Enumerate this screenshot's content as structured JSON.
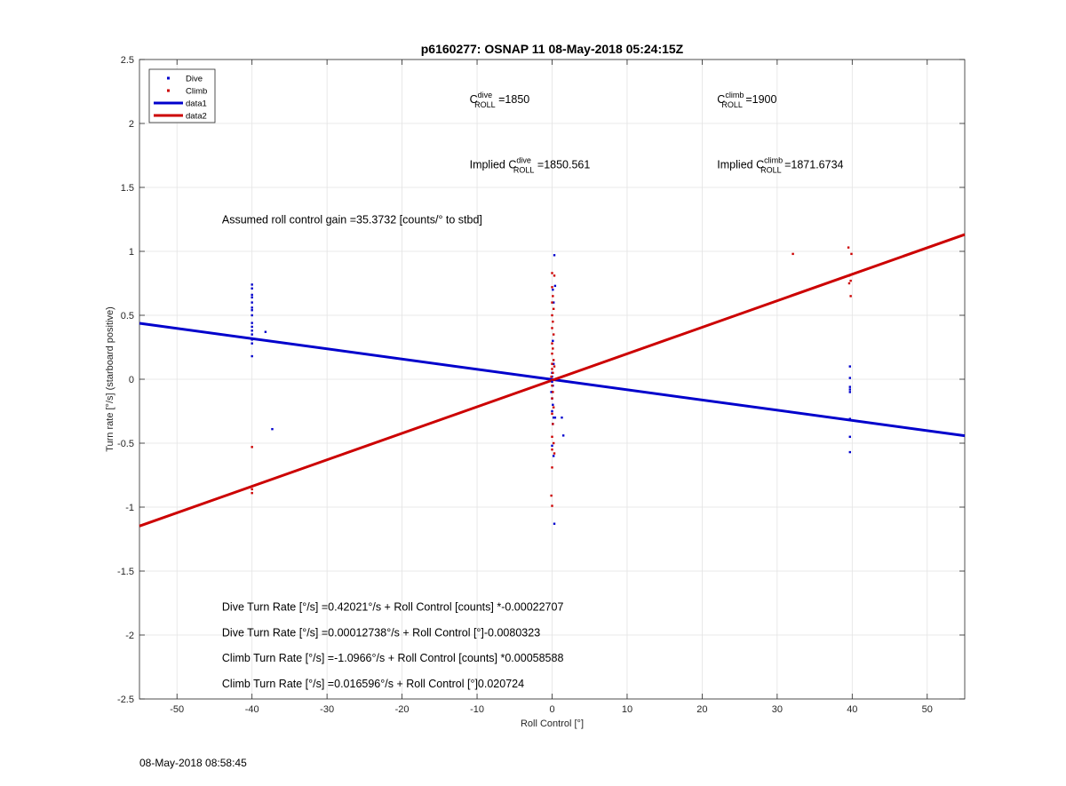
{
  "chart_data": {
    "type": "scatter",
    "title": "p6160277: OSNAP 11 08-May-2018 05:24:15Z",
    "xlabel": "Roll Control [°]",
    "ylabel": "Turn rate [°/s] (starboard positive)",
    "xlim": [
      -55,
      55
    ],
    "ylim": [
      -2.5,
      2.5
    ],
    "xticks": [
      -50,
      -40,
      -30,
      -20,
      -10,
      0,
      10,
      20,
      30,
      40,
      50
    ],
    "yticks": [
      -2.5,
      -2,
      -1.5,
      -1,
      -0.5,
      0,
      0.5,
      1,
      1.5,
      2,
      2.5
    ],
    "ytick_labels": [
      "-2.5",
      "-2",
      "-1.5",
      "-1",
      "-0.5",
      "0",
      "0.5",
      "1",
      "1.5",
      "2",
      "2.5"
    ],
    "grid": true,
    "legend_position": "top-left",
    "series": [
      {
        "name": "Dive",
        "kind": "points",
        "color": "#0000cc",
        "points": [
          [
            -40,
            0.74
          ],
          [
            -40,
            0.71
          ],
          [
            -40,
            0.66
          ],
          [
            -40,
            0.64
          ],
          [
            -40,
            0.6
          ],
          [
            -40,
            0.56
          ],
          [
            -40,
            0.54
          ],
          [
            -40,
            0.5
          ],
          [
            -40,
            0.44
          ],
          [
            -40,
            0.41
          ],
          [
            -40,
            0.38
          ],
          [
            -40,
            0.35
          ],
          [
            -40,
            0.31
          ],
          [
            -40,
            0.28
          ],
          [
            -40,
            0.18
          ],
          [
            -38.2,
            0.37
          ],
          [
            -37.3,
            -0.39
          ],
          [
            0.3,
            0.97
          ],
          [
            0.4,
            0.73
          ],
          [
            0.1,
            0.7
          ],
          [
            0.2,
            0.6
          ],
          [
            0.1,
            0.3
          ],
          [
            0.2,
            0.12
          ],
          [
            0,
            0.05
          ],
          [
            0,
            0.02
          ],
          [
            0,
            -0.02
          ],
          [
            0.1,
            -0.05
          ],
          [
            -0.1,
            -0.1
          ],
          [
            0,
            -0.15
          ],
          [
            0.1,
            -0.2
          ],
          [
            0,
            -0.25
          ],
          [
            0.2,
            -0.3
          ],
          [
            0.1,
            -0.35
          ],
          [
            0.4,
            -0.3
          ],
          [
            1.3,
            -0.3
          ],
          [
            1.5,
            -0.44
          ],
          [
            0,
            -0.52
          ],
          [
            0.2,
            -0.6
          ],
          [
            0.3,
            -1.13
          ],
          [
            39.7,
            0.1
          ],
          [
            39.7,
            0.01
          ],
          [
            39.7,
            -0.06
          ],
          [
            39.7,
            -0.08
          ],
          [
            39.7,
            -0.1
          ],
          [
            39.7,
            -0.31
          ],
          [
            39.7,
            -0.45
          ],
          [
            39.7,
            -0.57
          ]
        ]
      },
      {
        "name": "Climb",
        "kind": "points",
        "color": "#cc0000",
        "points": [
          [
            -40,
            -0.53
          ],
          [
            -40,
            -0.86
          ],
          [
            -40,
            -0.89
          ],
          [
            0,
            0.83
          ],
          [
            0.3,
            0.81
          ],
          [
            0,
            0.72
          ],
          [
            0.1,
            0.65
          ],
          [
            0,
            0.6
          ],
          [
            0.2,
            0.55
          ],
          [
            0,
            0.5
          ],
          [
            0.1,
            0.45
          ],
          [
            0,
            0.4
          ],
          [
            0.2,
            0.35
          ],
          [
            0,
            0.28
          ],
          [
            0.1,
            0.24
          ],
          [
            0,
            0.2
          ],
          [
            0.2,
            0.15
          ],
          [
            0,
            0.12
          ],
          [
            0.3,
            0.1
          ],
          [
            0,
            0.08
          ],
          [
            0.1,
            0.05
          ],
          [
            -0.1,
            0.02
          ],
          [
            0,
            -0.05
          ],
          [
            0.1,
            -0.1
          ],
          [
            0,
            -0.15
          ],
          [
            0.2,
            -0.22
          ],
          [
            0,
            -0.27
          ],
          [
            0.1,
            -0.35
          ],
          [
            0,
            -0.45
          ],
          [
            0.2,
            -0.5
          ],
          [
            0,
            -0.55
          ],
          [
            0.3,
            -0.58
          ],
          [
            0,
            -0.69
          ],
          [
            -0.1,
            -0.91
          ],
          [
            0,
            -0.99
          ],
          [
            32.1,
            0.98
          ],
          [
            39.5,
            1.03
          ],
          [
            39.9,
            0.98
          ],
          [
            39.6,
            0.81
          ],
          [
            39.8,
            0.77
          ],
          [
            39.6,
            0.75
          ],
          [
            39.8,
            0.65
          ]
        ]
      },
      {
        "name": "data1",
        "kind": "line",
        "color": "#0000cc",
        "x": [
          -55,
          55
        ],
        "y": [
          0.4375,
          -0.4418
        ]
      },
      {
        "name": "data2",
        "kind": "line",
        "color": "#cc0000",
        "x": [
          -55,
          55
        ],
        "y": [
          -1.1481,
          1.1317
        ]
      }
    ],
    "annotations": [
      {
        "id": "c-roll-dive",
        "x": -11,
        "y": 2.16,
        "base": "C",
        "sup": "dive",
        "sub": "ROLL",
        "suffix": " =1850"
      },
      {
        "id": "c-roll-climb",
        "x": 22,
        "y": 2.16,
        "base": "C",
        "sup": "climb",
        "sub": "ROLL",
        "suffix": " =1900"
      },
      {
        "id": "implied-dive",
        "x": -11,
        "y": 1.65,
        "base": "Implied C",
        "sup": "dive",
        "sub": "ROLL",
        "suffix": " =1850.561"
      },
      {
        "id": "implied-climb",
        "x": 22,
        "y": 1.65,
        "base": "Implied C",
        "sup": "climb",
        "sub": "ROLL",
        "suffix": " =1871.6734"
      },
      {
        "id": "roll-gain",
        "x": -44,
        "y": 1.22,
        "text": "Assumed roll control gain =35.3732 [counts/° to stbd]"
      },
      {
        "id": "dive-eq-counts",
        "x": -44,
        "y": -1.81,
        "text": "Dive Turn Rate [°/s] =0.42021°/s + Roll Control [counts] *-0.00022707"
      },
      {
        "id": "dive-eq-deg",
        "x": -44,
        "y": -2.01,
        "text": "Dive Turn Rate [°/s] =0.00012738°/s + Roll Control [°]-0.0080323"
      },
      {
        "id": "climb-eq-counts",
        "x": -44,
        "y": -2.21,
        "text": "Climb Turn Rate [°/s] =-1.0966°/s + Roll Control [counts] *0.00058588"
      },
      {
        "id": "climb-eq-deg",
        "x": -44,
        "y": -2.41,
        "text": "Climb Turn Rate [°/s] =0.016596°/s + Roll Control [°]0.020724"
      }
    ]
  },
  "footer": {
    "timestamp": "08-May-2018 08:58:45"
  }
}
